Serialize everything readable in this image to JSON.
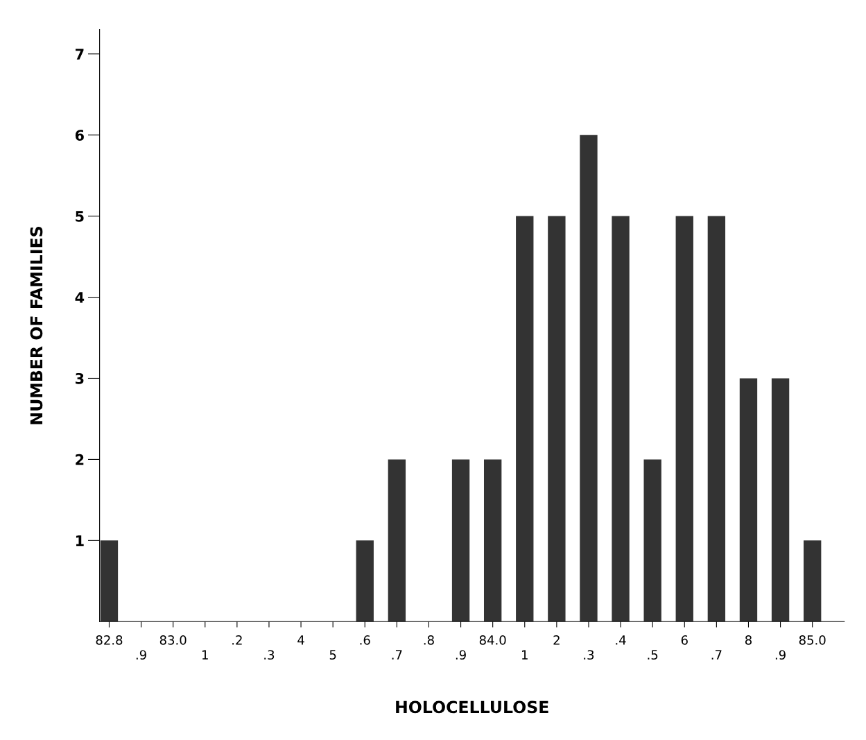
{
  "chart_data": {
    "type": "bar",
    "xlabel": "HOLOCELLULOSE",
    "ylabel": "NUMBER OF FAMILIES",
    "categories": [
      "82.8",
      ".9",
      "83.0",
      "1",
      ".2",
      ".3",
      "4",
      "5",
      ".6",
      ".7",
      ".8",
      ".9",
      "84.0",
      "1",
      "2",
      ".3",
      ".4",
      ".5",
      "6",
      ".7",
      "8",
      ".9",
      "85.0"
    ],
    "values": [
      1,
      0,
      0,
      0,
      0,
      0,
      0,
      0,
      1,
      2,
      0,
      2,
      2,
      5,
      5,
      6,
      5,
      2,
      5,
      5,
      3,
      3,
      1
    ],
    "color": "#333333",
    "ylim": [
      0,
      7.3
    ],
    "yticks": [
      1,
      2,
      3,
      4,
      5,
      6,
      7
    ],
    "grid": false,
    "legend": false
  }
}
